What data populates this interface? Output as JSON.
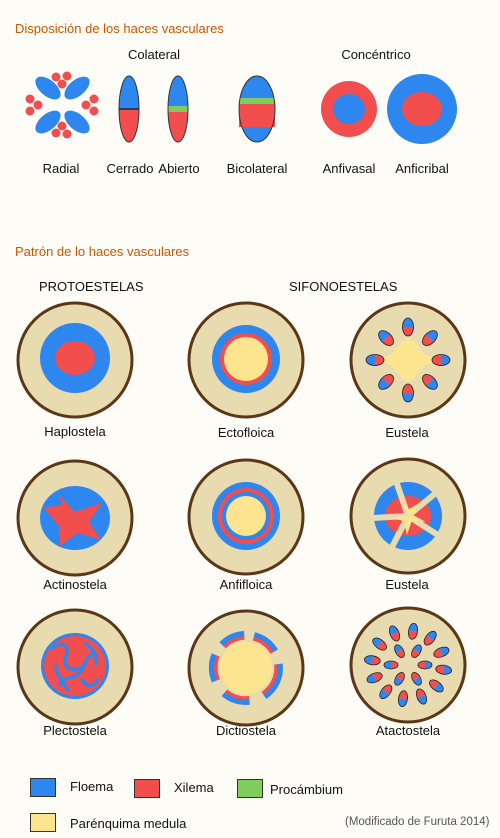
{
  "colors": {
    "floema": "#2e86ef",
    "xilema": "#f24e4e",
    "procambium": "#7fcd5a",
    "parenquima": "#fde48e",
    "cortex": "#e9dbb0",
    "epidermis": "#5b3617",
    "section_title": "#cc5500"
  },
  "section1": {
    "title": "Disposición de los haces vasculares",
    "group_colateral": "Colateral",
    "group_concentrico": "Concéntrico",
    "types": {
      "radial": "Radial",
      "cerrado": "Cerrado",
      "abierto": "Abierto",
      "bicolateral": "Bicolateral",
      "anfivasal": "Anfivasal",
      "anficribal": "Anficribal"
    }
  },
  "section2": {
    "title": "Patrón de lo haces vasculares",
    "col_protoestelas": "PROTOESTELAS",
    "col_sifonoestelas": "SIFONOESTELAS",
    "steles": {
      "haplostela": "Haplostela",
      "ectofloica": "Ectofloica",
      "eustela_1": "Eustela",
      "actinostela": "Actinostela",
      "anfifloica": "Anfifloica",
      "eustela_2": "Eustela",
      "plectostela": "Plectostela",
      "dictiostela": "Dictiostela",
      "atactostela": "Atactostela"
    }
  },
  "legend": {
    "floema": "Floema",
    "xilema": "Xilema",
    "procambium": "Procámbium",
    "parenquima": "Parénquima medula"
  },
  "credit": "(Modificado de Furuta 2014)"
}
